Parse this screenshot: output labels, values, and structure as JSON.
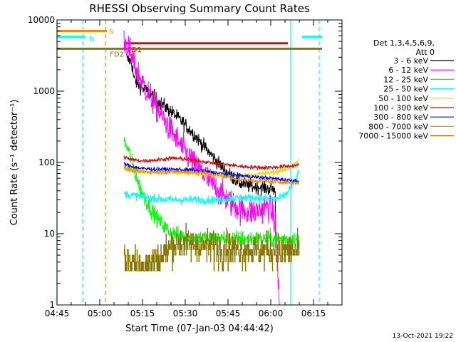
{
  "chart_data": {
    "type": "line",
    "title": "RHESSI Observing Summary Count Rates",
    "xlabel": "Start Time (07-Jan-03 04:44:42)",
    "ylabel": "Count Rate (s⁻¹ detector⁻¹)",
    "x_unit": "minutes since 04:45",
    "xlim": [
      0,
      100
    ],
    "ylim": [
      1,
      10000
    ],
    "yscale": "log",
    "x_ticks": [
      {
        "v": 0,
        "label": "04:45"
      },
      {
        "v": 15,
        "label": "05:00"
      },
      {
        "v": 30,
        "label": "05:15"
      },
      {
        "v": 45,
        "label": "05:30"
      },
      {
        "v": 60,
        "label": "05:45"
      },
      {
        "v": 75,
        "label": "06:00"
      },
      {
        "v": 90,
        "label": "06:15"
      }
    ],
    "y_ticks": [
      {
        "v": 1,
        "label": "1"
      },
      {
        "v": 10,
        "label": "10"
      },
      {
        "v": 100,
        "label": "100"
      },
      {
        "v": 1000,
        "label": "1000"
      },
      {
        "v": 10000,
        "label": "10000"
      }
    ],
    "legend": {
      "position": "right",
      "header": [
        "Det 1,3,4,5,6,9,",
        "Att 0"
      ],
      "entries": [
        {
          "label": "3 - 6 keV",
          "color": "#000000"
        },
        {
          "label": "6 - 12 keV",
          "color": "#ff00ff"
        },
        {
          "label": "12 - 25 keV",
          "color": "#00ff00"
        },
        {
          "label": "25 - 50 keV",
          "color": "#00ffff"
        },
        {
          "label": "50 - 100 keV",
          "color": "#dddd00"
        },
        {
          "label": "100 - 300 keV",
          "color": "#dd0000"
        },
        {
          "label": "300 - 800 keV",
          "color": "#0000ff"
        },
        {
          "label": "800 - 7000 keV",
          "color": "#ff8800"
        },
        {
          "label": "7000 - 15000 keV",
          "color": "#887700"
        }
      ]
    },
    "series": [
      {
        "name": "3 - 6 keV",
        "color": "#000000",
        "x": [
          24.5,
          25.5,
          26.2,
          27,
          28,
          30,
          33,
          36,
          40,
          44,
          48,
          52,
          56,
          60,
          64,
          68,
          72,
          74,
          76,
          76.6,
          76.8
        ],
        "y": [
          2800,
          2700,
          2500,
          1500,
          1300,
          1100,
          900,
          700,
          520,
          370,
          250,
          160,
          105,
          70,
          52,
          46,
          45,
          43,
          42,
          40,
          1
        ]
      },
      {
        "name": "6 - 12 keV",
        "color": "#ff00ff",
        "x": [
          23.5,
          25,
          27,
          30,
          33,
          36,
          40,
          44,
          48,
          52,
          56,
          60,
          64,
          68,
          72,
          74,
          76,
          77,
          78,
          80
        ],
        "y": [
          5200,
          4000,
          2400,
          1300,
          800,
          500,
          280,
          160,
          95,
          65,
          43,
          30,
          22,
          20,
          22,
          25,
          18,
          10,
          1,
          1
        ]
      },
      {
        "name": "12 - 25 keV",
        "color": "#00ff00",
        "x": [
          23.5,
          25,
          27,
          29,
          31,
          33,
          36,
          38,
          40,
          43,
          46,
          50,
          55,
          60,
          65,
          70,
          75,
          80,
          84,
          85
        ],
        "y": [
          200,
          150,
          80,
          45,
          30,
          22,
          15,
          12,
          10.5,
          9.5,
          9,
          8.8,
          8.5,
          8.6,
          8.5,
          8.4,
          8.5,
          8.5,
          8.5,
          7
        ]
      },
      {
        "name": "25 - 50 keV",
        "color": "#00ffff",
        "x": [
          23.5,
          26,
          30,
          35,
          40,
          45,
          50,
          55,
          60,
          65,
          70,
          75,
          78,
          80,
          82,
          84,
          85
        ],
        "y": [
          36,
          35,
          33,
          31,
          30,
          30,
          30,
          30,
          31,
          32,
          32,
          31,
          31,
          35,
          45,
          60,
          75
        ]
      },
      {
        "name": "50 - 100 keV",
        "color": "#dddd00",
        "x": [
          23.5,
          26,
          30,
          35,
          40,
          45,
          50,
          55,
          60,
          65,
          70,
          75,
          80,
          83,
          85
        ],
        "y": [
          85,
          80,
          75,
          74,
          74,
          73,
          70,
          67,
          65,
          65,
          68,
          72,
          78,
          90,
          110
        ]
      },
      {
        "name": "100 - 300 keV",
        "color": "#dd0000",
        "x": [
          23.5,
          26,
          30,
          35,
          40,
          45,
          50,
          55,
          60,
          65,
          70,
          75,
          80,
          85
        ],
        "y": [
          120,
          110,
          105,
          108,
          115,
          112,
          105,
          98,
          93,
          88,
          85,
          85,
          88,
          92
        ]
      },
      {
        "name": "300 - 800 keV",
        "color": "#0000ff",
        "x": [
          23.5,
          26,
          30,
          35,
          40,
          45,
          50,
          55,
          60,
          65,
          70,
          75,
          80,
          85
        ],
        "y": [
          95,
          88,
          82,
          80,
          80,
          79,
          77,
          72,
          68,
          65,
          62,
          60,
          57,
          55
        ]
      },
      {
        "name": "800 - 7000 keV",
        "color": "#ff8800",
        "x": [
          23.5,
          26,
          30,
          35,
          40,
          45,
          50,
          55,
          60,
          65,
          70,
          75,
          80,
          85
        ],
        "y": [
          82,
          78,
          74,
          73,
          74,
          74,
          72,
          68,
          62,
          57,
          55,
          54,
          53,
          52
        ]
      },
      {
        "name": "7000 - 15000 keV",
        "color": "#887700",
        "x": [
          23.5,
          26,
          28,
          30,
          32,
          34,
          36,
          38,
          40,
          43,
          46,
          50,
          55,
          60,
          65,
          70,
          75,
          80,
          85
        ],
        "y": [
          4.5,
          4.2,
          4.0,
          3.8,
          3.7,
          4.0,
          4.5,
          5.5,
          6.8,
          7.5,
          7.2,
          6.8,
          6.5,
          6.2,
          6.0,
          5.8,
          5.8,
          5.7,
          5.8
        ]
      }
    ],
    "flags": [
      {
        "label": "S",
        "color": "#ff8800",
        "y": 7000,
        "x_start": 0,
        "x_end": 17.5
      },
      {
        "label": "N",
        "color": "#00ffff",
        "y": 5800,
        "x_start": 0,
        "x_end": 10,
        "x_start2": 86,
        "x_end2": 93
      },
      {
        "label": "FD1",
        "color": "#ee0000",
        "y": 4700,
        "x_start": 24,
        "x_end": 81
      },
      {
        "label": "FD2",
        "color": "#887700",
        "y": 3950,
        "x_start": 0,
        "x_end": 93
      }
    ],
    "vlines": [
      {
        "x": 0,
        "color": "#00ffff",
        "style": "solid"
      },
      {
        "x": 9,
        "color": "#00ffff",
        "style": "dashed"
      },
      {
        "x": 17,
        "color": "#ff8800",
        "style": "dashed"
      },
      {
        "x": 82,
        "color": "#00ffff",
        "style": "solid"
      },
      {
        "x": 92,
        "color": "#00ffff",
        "style": "dashed"
      }
    ]
  },
  "footer": {
    "date_stamp": "13-Oct-2021 19:22"
  }
}
